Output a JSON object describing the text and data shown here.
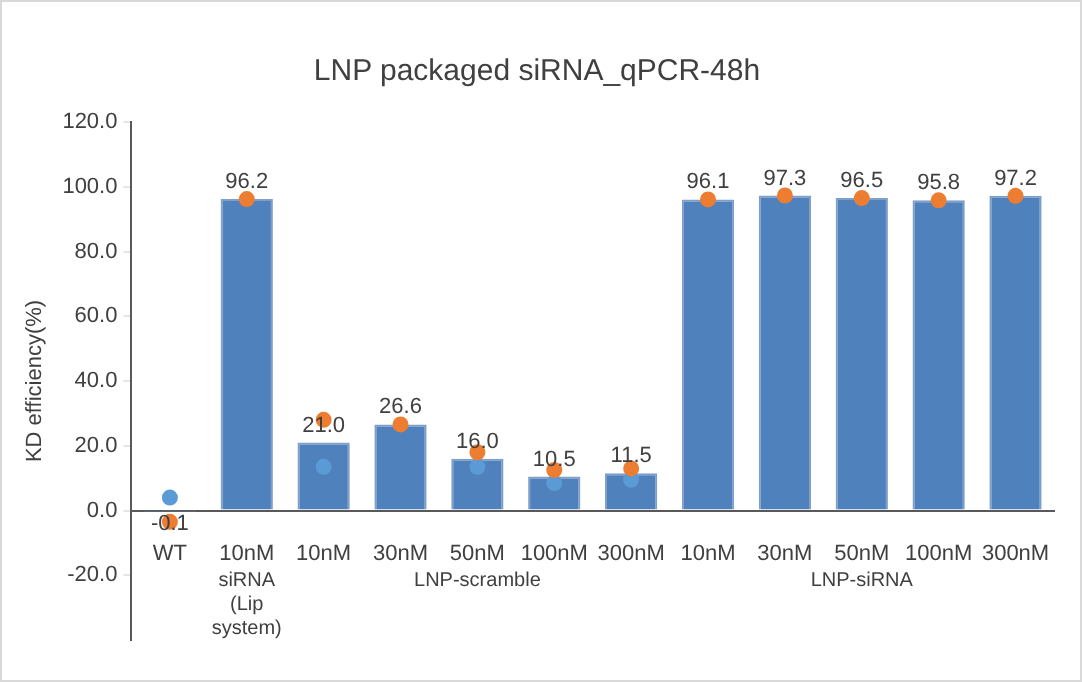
{
  "chart_data": {
    "type": "bar",
    "title": "LNP packaged siRNA_qPCR-48h",
    "ylabel": "KD efficiency(%)",
    "categories": [
      "WT",
      "10nM",
      "10nM",
      "30nM",
      "50nM",
      "100nM",
      "300nM",
      "10nM",
      "30nM",
      "50nM",
      "100nM",
      "300nM"
    ],
    "series": [
      {
        "color": "#4f81bd",
        "values": [
          -0.1,
          96.2,
          21.0,
          26.6,
          16.0,
          10.5,
          11.5,
          96.1,
          97.3,
          96.5,
          95.8,
          97.2
        ],
        "value_labels": [
          "-0.1",
          "96.2",
          "21.0",
          "26.6",
          "16.0",
          "10.5",
          "11.5",
          "96.1",
          "97.3",
          "96.5",
          "95.8",
          "97.2"
        ]
      },
      {
        "type": "scatter",
        "color": "#ed7d31",
        "values": [
          -3.5,
          96.2,
          28,
          26.6,
          18,
          12.5,
          13,
          96.1,
          97.3,
          96.5,
          95.8,
          97.2
        ]
      },
      {
        "type": "scatter",
        "color": "#5b9bd5",
        "values": [
          4,
          null,
          13.5,
          null,
          13.5,
          8.5,
          9.5,
          null,
          null,
          null,
          null,
          null
        ]
      }
    ],
    "annotations": [
      "siRNA (Lip system)",
      "LNP-scramble",
      "LNP-siRNA"
    ],
    "ylim": [
      -40,
      120
    ],
    "yticks": [
      {
        "value": -20,
        "label": "-20.0"
      },
      {
        "value": 0,
        "label": "0.0"
      },
      {
        "value": 20,
        "label": "20.0"
      },
      {
        "value": 40,
        "label": "40.0"
      },
      {
        "value": 60,
        "label": "60.0"
      },
      {
        "value": 80,
        "label": "80.0"
      },
      {
        "value": 100,
        "label": "100.0"
      },
      {
        "value": 120,
        "label": "120.0"
      }
    ],
    "grid": false,
    "legend": false,
    "marker": "circle"
  }
}
